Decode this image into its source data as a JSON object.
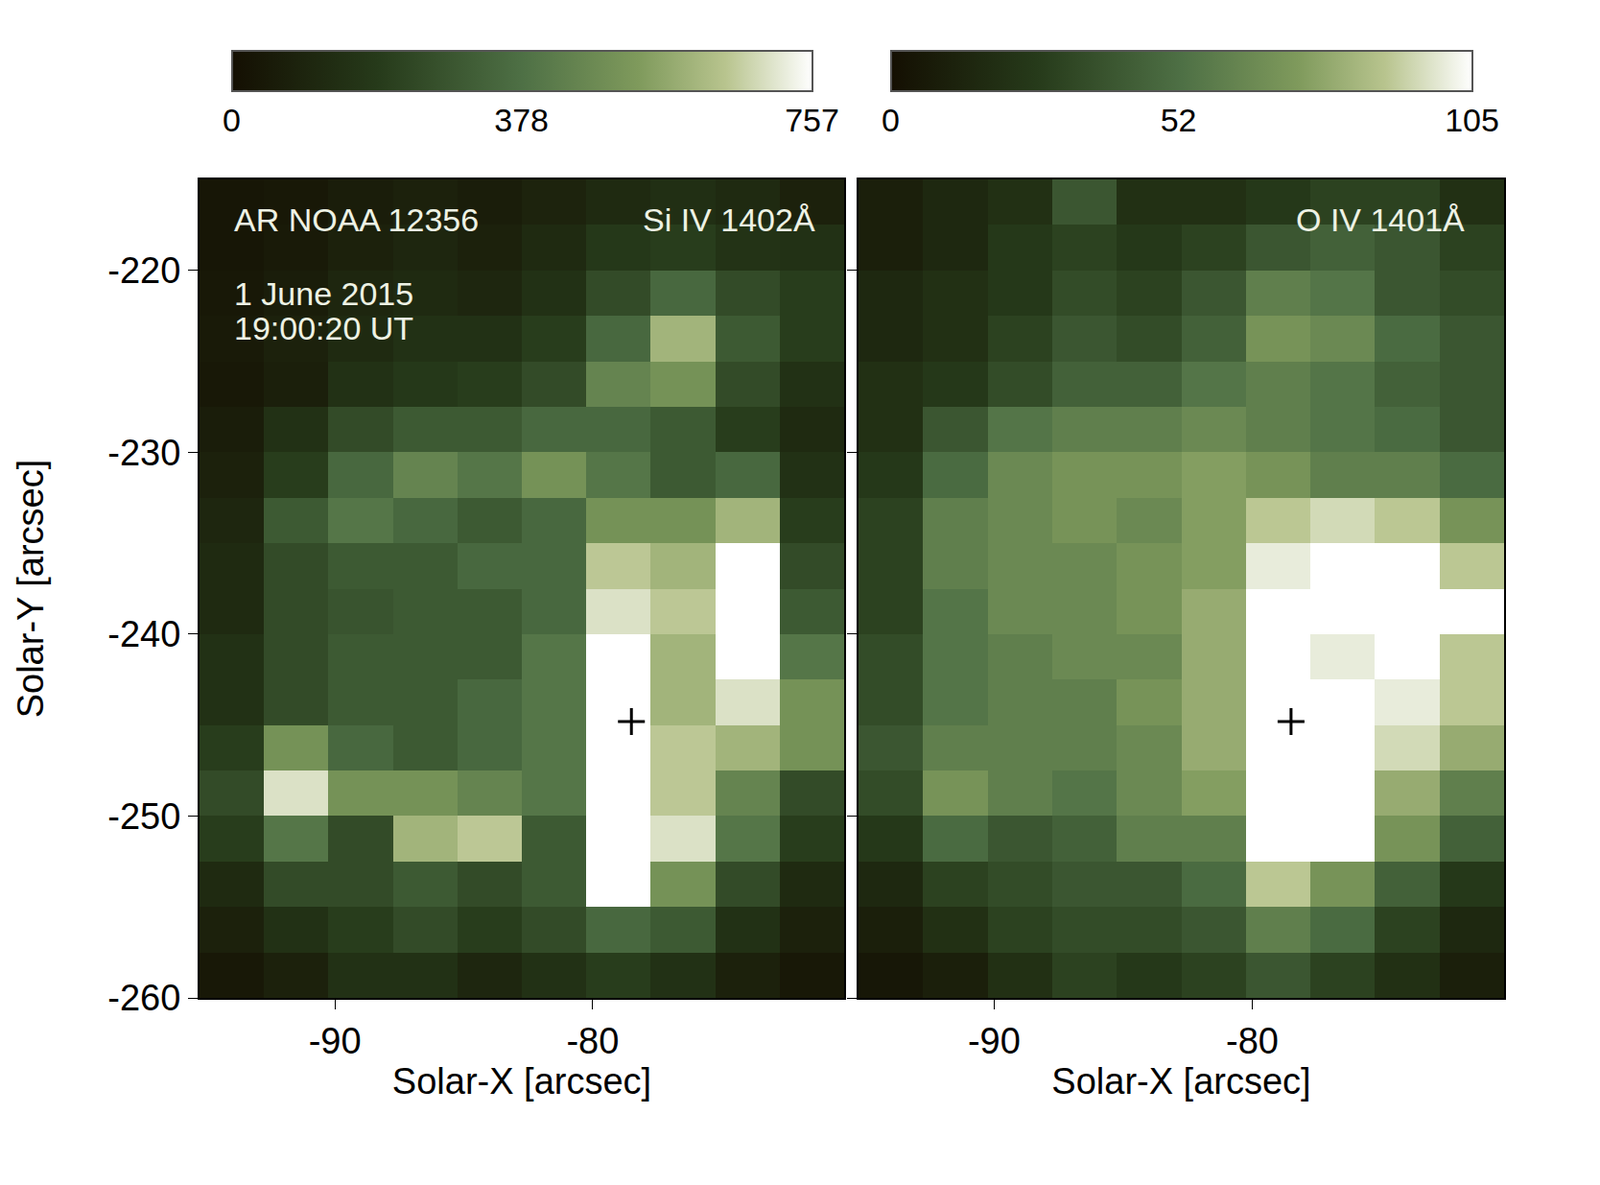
{
  "chart_data": [
    {
      "type": "heatmap",
      "xlabel": "Solar-X [arcsec]",
      "ylabel": "Solar-Y [arcsec]",
      "annotations": [
        {
          "text": "AR NOAA 12356",
          "x": -94.0,
          "y": -217.2,
          "align": "left"
        },
        {
          "text": "Si IV 1402Å",
          "x": -71.3,
          "y": -217.2,
          "align": "right"
        },
        {
          "text": "1 June 2015",
          "x": -94.0,
          "y": -221.3,
          "align": "left"
        },
        {
          "text": "19:00:20 UT",
          "x": -94.0,
          "y": -223.2,
          "align": "left"
        }
      ],
      "x": [
        -94,
        -91.5,
        -89,
        -86.5,
        -84,
        -81.5,
        -79,
        -76.5,
        -74,
        -71.5
      ],
      "y": [
        -258.75,
        -256.25,
        -253.75,
        -251.25,
        -248.75,
        -246.25,
        -243.75,
        -241.25,
        -238.75,
        -236.25,
        -233.75,
        -231.25,
        -228.75,
        -226.25,
        -223.75,
        -221.25,
        -218.75,
        -216.25
      ],
      "cells": [
        [
          40,
          80,
          150,
          150,
          100,
          150,
          200,
          150,
          80,
          40
        ],
        [
          80,
          150,
          200,
          250,
          200,
          250,
          350,
          300,
          150,
          80
        ],
        [
          120,
          250,
          250,
          300,
          250,
          300,
          757,
          500,
          250,
          120
        ],
        [
          200,
          400,
          250,
          600,
          650,
          300,
          757,
          700,
          400,
          200
        ],
        [
          250,
          700,
          500,
          500,
          450,
          400,
          757,
          650,
          450,
          250
        ],
        [
          200,
          500,
          350,
          300,
          350,
          400,
          757,
          650,
          600,
          500
        ],
        [
          150,
          250,
          300,
          300,
          350,
          400,
          757,
          600,
          700,
          500
        ],
        [
          150,
          250,
          300,
          300,
          300,
          400,
          757,
          600,
          757,
          400
        ],
        [
          120,
          250,
          280,
          300,
          300,
          350,
          700,
          650,
          757,
          300
        ],
        [
          120,
          250,
          300,
          300,
          350,
          350,
          650,
          600,
          757,
          250
        ],
        [
          100,
          300,
          400,
          350,
          300,
          350,
          500,
          500,
          600,
          200
        ],
        [
          80,
          200,
          350,
          450,
          400,
          500,
          400,
          300,
          350,
          150
        ],
        [
          60,
          150,
          250,
          300,
          300,
          350,
          350,
          300,
          200,
          120
        ],
        [
          40,
          70,
          150,
          180,
          200,
          250,
          450,
          500,
          250,
          150
        ],
        [
          50,
          80,
          120,
          150,
          150,
          200,
          350,
          600,
          300,
          200
        ],
        [
          40,
          60,
          100,
          120,
          100,
          150,
          250,
          350,
          250,
          200
        ],
        [
          30,
          50,
          80,
          100,
          80,
          120,
          180,
          200,
          160,
          150
        ],
        [
          30,
          40,
          60,
          80,
          60,
          90,
          120,
          140,
          120,
          80
        ]
      ],
      "colorbar": {
        "range": [
          0,
          757
        ],
        "ticks": [
          0,
          378,
          757
        ]
      },
      "points": [
        {
          "x": -78.5,
          "y": -244.8
        }
      ],
      "marker": "cross",
      "xlim": [
        -95.25,
        -70.25
      ],
      "ylim": [
        -260,
        -215
      ],
      "xticks": [
        -90,
        -80
      ],
      "yticks": [
        -220,
        -230,
        -240,
        -250,
        -260
      ]
    },
    {
      "type": "heatmap",
      "xlabel": "Solar-X [arcsec]",
      "annotations": [
        {
          "text": "O IV 1401Å",
          "x": -71.7,
          "y": -217.2,
          "align": "right"
        }
      ],
      "x": [
        -94,
        -91.5,
        -89,
        -86.5,
        -84,
        -81.5,
        -79,
        -76.5,
        -74,
        -71.5
      ],
      "y": [
        -258.75,
        -256.25,
        -253.75,
        -251.25,
        -248.75,
        -246.25,
        -243.75,
        -241.25,
        -238.75,
        -236.25,
        -233.75,
        -231.25,
        -228.75,
        -226.25,
        -223.75,
        -221.25,
        -218.75,
        -216.25
      ],
      "cells": [
        [
          5,
          10,
          20,
          30,
          25,
          30,
          40,
          30,
          20,
          10
        ],
        [
          10,
          20,
          30,
          35,
          35,
          40,
          60,
          50,
          30,
          15
        ],
        [
          15,
          30,
          35,
          40,
          40,
          50,
          90,
          70,
          45,
          25
        ],
        [
          25,
          50,
          40,
          45,
          60,
          60,
          105,
          105,
          70,
          45
        ],
        [
          35,
          70,
          60,
          55,
          65,
          75,
          105,
          105,
          80,
          60
        ],
        [
          40,
          60,
          60,
          60,
          65,
          80,
          105,
          105,
          95,
          80
        ],
        [
          35,
          55,
          60,
          60,
          70,
          80,
          105,
          105,
          100,
          90
        ],
        [
          35,
          55,
          60,
          65,
          65,
          80,
          105,
          100,
          105,
          90
        ],
        [
          30,
          55,
          65,
          65,
          70,
          80,
          105,
          105,
          105,
          105
        ],
        [
          30,
          60,
          65,
          65,
          70,
          75,
          100,
          105,
          105,
          90
        ],
        [
          30,
          60,
          65,
          70,
          65,
          75,
          90,
          95,
          90,
          70
        ],
        [
          25,
          50,
          65,
          70,
          70,
          75,
          70,
          60,
          60,
          50
        ],
        [
          20,
          40,
          55,
          60,
          60,
          65,
          60,
          55,
          50,
          40
        ],
        [
          20,
          25,
          35,
          45,
          45,
          55,
          60,
          55,
          45,
          40
        ],
        [
          15,
          20,
          30,
          40,
          35,
          45,
          70,
          65,
          50,
          40
        ],
        [
          15,
          20,
          25,
          35,
          30,
          40,
          60,
          55,
          40,
          35
        ],
        [
          10,
          15,
          25,
          30,
          25,
          30,
          40,
          45,
          40,
          30
        ],
        [
          10,
          15,
          20,
          40,
          20,
          20,
          25,
          30,
          30,
          20
        ]
      ],
      "colorbar": {
        "range": [
          0,
          105
        ],
        "ticks": [
          0,
          52,
          105
        ]
      },
      "points": [
        {
          "x": -78.5,
          "y": -244.8
        }
      ],
      "marker": "cross",
      "xlim": [
        -95.25,
        -70.25
      ],
      "ylim": [
        -260,
        -215
      ],
      "xticks": [
        -90,
        -80
      ],
      "yticks": [
        -220,
        -230,
        -240,
        -250,
        -260
      ],
      "tick_labels": "x"
    }
  ]
}
